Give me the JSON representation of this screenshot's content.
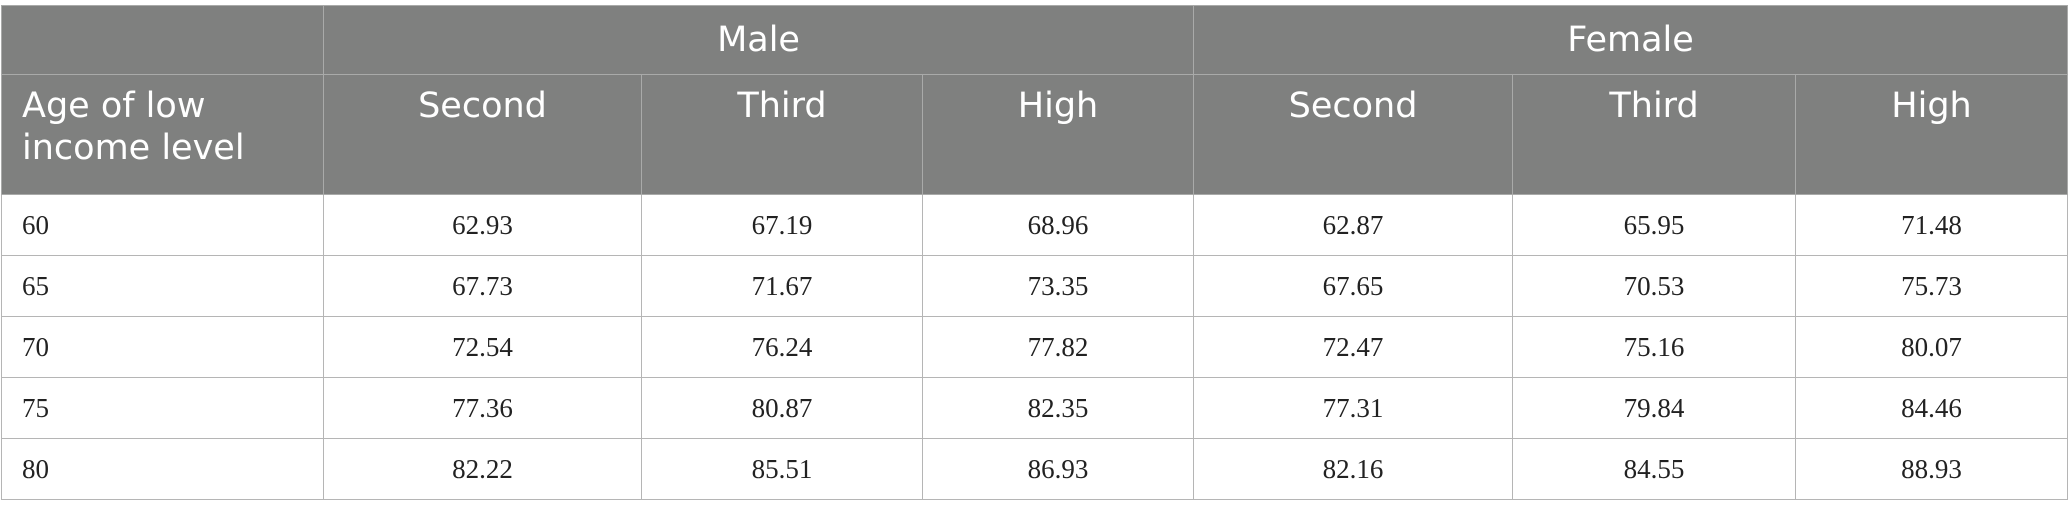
{
  "table": {
    "group_header": [
      "Male",
      "Female"
    ],
    "column_header": [
      "Age of low income level",
      "Second",
      "Third",
      "High",
      "Second",
      "Third",
      "High"
    ],
    "rows": [
      [
        60,
        62.93,
        67.19,
        68.96,
        62.87,
        65.95,
        71.48
      ],
      [
        65,
        67.73,
        71.67,
        73.35,
        67.65,
        70.53,
        75.73
      ],
      [
        70,
        72.54,
        76.24,
        77.82,
        72.47,
        75.16,
        80.07
      ],
      [
        75,
        77.36,
        80.87,
        82.35,
        77.31,
        79.84,
        84.46
      ],
      [
        80,
        82.22,
        85.51,
        86.93,
        82.16,
        84.55,
        88.93
      ]
    ]
  }
}
